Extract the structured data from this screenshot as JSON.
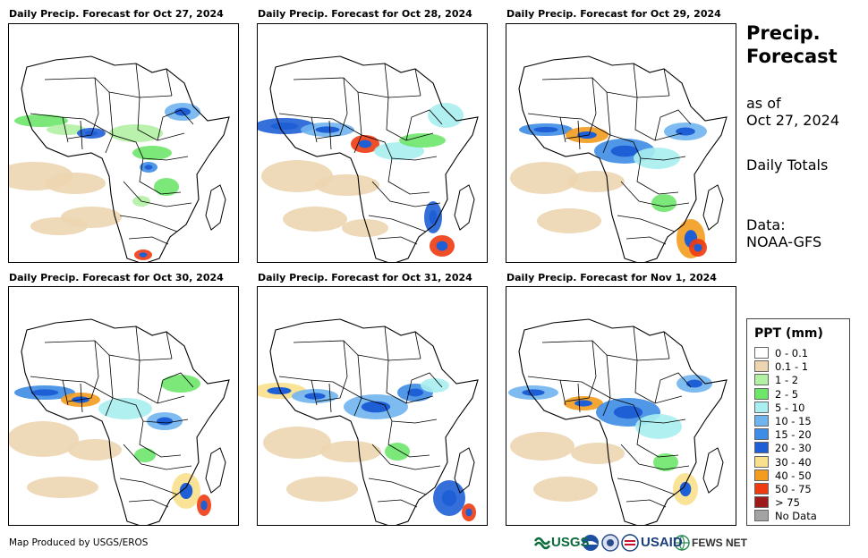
{
  "panels": [
    {
      "title": "Daily Precip. Forecast for Oct 27, 2024"
    },
    {
      "title": "Daily Precip. Forecast for Oct 28, 2024"
    },
    {
      "title": "Daily Precip. Forecast for Oct 29, 2024"
    },
    {
      "title": "Daily Precip. Forecast for Oct 30, 2024"
    },
    {
      "title": "Daily Precip. Forecast for Oct 31, 2024"
    },
    {
      "title": "Daily Precip. Forecast for Nov 1, 2024"
    }
  ],
  "sidebar": {
    "title_line1": "Precip.",
    "title_line2": "Forecast",
    "asof_line1": "as of",
    "asof_line2": "Oct 27, 2024",
    "totals": "Daily Totals",
    "data_line1": "Data:",
    "data_line2": "NOAA-GFS"
  },
  "legend": {
    "title": "PPT (mm)",
    "items": [
      {
        "label": "0 - 0.1",
        "color": "#ffffff"
      },
      {
        "label": "0.1 - 1",
        "color": "#ecd5b0"
      },
      {
        "label": "1 - 2",
        "color": "#b2f0a4"
      },
      {
        "label": "2 - 5",
        "color": "#6ee66a"
      },
      {
        "label": "5 - 10",
        "color": "#a9eef0"
      },
      {
        "label": "10 - 15",
        "color": "#70b4ef"
      },
      {
        "label": "15 - 20",
        "color": "#3d8ce6"
      },
      {
        "label": "20 - 30",
        "color": "#1f5fd6"
      },
      {
        "label": "30 - 40",
        "color": "#f9e08c"
      },
      {
        "label": "40 - 50",
        "color": "#f39c1f"
      },
      {
        "label": "50 - 75",
        "color": "#ee3b12"
      },
      {
        "label": "> 75",
        "color": "#9e1a1a"
      },
      {
        "label": "No Data",
        "color": "#a3a3a3"
      }
    ]
  },
  "footer": {
    "credit": "Map Produced by USGS/EROS",
    "logo_usgs": "USGS",
    "logo_usaid": "USAID",
    "logo_fews": "FEWS NET"
  }
}
